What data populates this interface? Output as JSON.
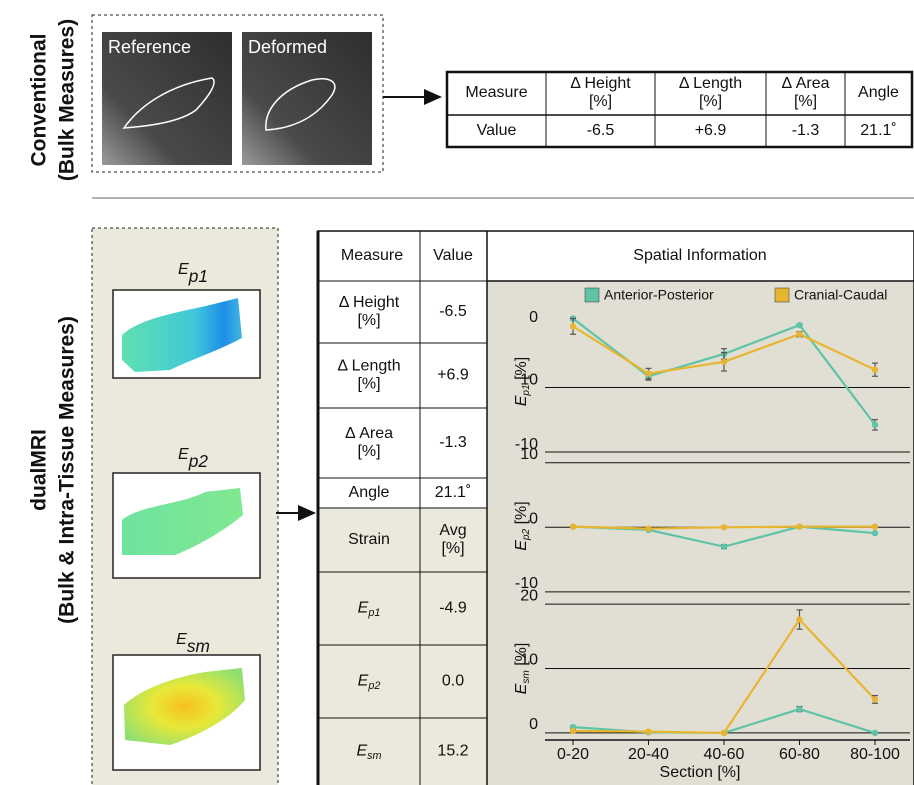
{
  "labels": {
    "conventional": [
      "Conventional",
      "(Bulk Measures)"
    ],
    "dualmri": [
      "dualMRI",
      "(Bulk & Intra-Tissue Measures)"
    ]
  },
  "images": {
    "reference": "Reference",
    "deformed": "Deformed"
  },
  "top_table": {
    "header": [
      [
        "Measure"
      ],
      [
        "Δ Height",
        "[%]"
      ],
      [
        "Δ Length",
        "[%]"
      ],
      [
        "Δ Area",
        "[%]"
      ],
      [
        "Angle"
      ]
    ],
    "row": [
      "Value",
      "-6.5",
      "+6.9",
      "-1.3",
      "21.1˚"
    ]
  },
  "maps": [
    {
      "symbol": "E",
      "sub": "p1"
    },
    {
      "symbol": "E",
      "sub": "p2"
    },
    {
      "symbol": "E",
      "sub": "sm"
    }
  ],
  "bottom_table": {
    "header": [
      "Measure",
      "Value"
    ],
    "rows": [
      [
        [
          "Δ Height",
          "[%]"
        ],
        "-6.5"
      ],
      [
        [
          "Δ Length",
          "[%]"
        ],
        "+6.9"
      ],
      [
        [
          "Δ Area",
          "[%]"
        ],
        "-1.3"
      ],
      [
        [
          "Angle"
        ],
        "21.1˚"
      ]
    ],
    "strain_header": [
      "Strain",
      [
        "Avg",
        "[%]"
      ]
    ],
    "strain_rows": [
      [
        {
          "symbol": "E",
          "sub": "p1"
        },
        "-4.9"
      ],
      [
        {
          "symbol": "E",
          "sub": "p2"
        },
        "0.0"
      ],
      [
        {
          "symbol": "E",
          "sub": "sm"
        },
        "15.2"
      ]
    ]
  },
  "spatial": {
    "title": "Spatial Information",
    "x_label": "Section [%]"
  },
  "chart_data": [
    {
      "type": "line",
      "y_label": {
        "symbol": "E",
        "sub": "p1",
        "unit": "[%]"
      },
      "ylim": [
        -10.4,
        0.8
      ],
      "ytick_labels": [
        "0",
        "10",
        "-10"
      ],
      "series": [
        {
          "name": "Anterior-Posterior",
          "color": "#5fc4a6",
          "values": [
            0,
            -4.4,
            -2.7,
            -0.5,
            -8.1
          ],
          "errors": [
            0.1,
            0.3,
            0.4,
            0.1,
            0.4
          ]
        },
        {
          "name": "Cranial-Caudal",
          "color": "#e8b530",
          "values": [
            -0.6,
            -4.2,
            -3.3,
            -1.2,
            -3.9
          ],
          "errors": [
            0.6,
            0.4,
            0.7,
            0.2,
            0.5
          ]
        }
      ]
    },
    {
      "type": "line",
      "y_label": {
        "symbol": "E",
        "sub": "p2",
        "unit": "[%]"
      },
      "ylim": [
        -10.8,
        11.2
      ],
      "yticks": [
        10,
        0,
        -10
      ],
      "series": [
        {
          "color": "#5fc4a6",
          "values": [
            0.1,
            -0.4,
            -3.0,
            0.1,
            -0.9
          ],
          "errors": [
            0.1,
            0.1,
            0.3,
            0.1,
            0.1
          ]
        },
        {
          "color": "#e8b530",
          "values": [
            0.1,
            -0.2,
            0,
            0.1,
            0.1
          ],
          "errors": [
            0.1,
            0.1,
            0.1,
            0.1,
            0.1
          ]
        }
      ]
    },
    {
      "type": "line",
      "y_label": {
        "symbol": "E",
        "sub": "sm",
        "unit": "[%]"
      },
      "ylim": [
        -1.1,
        21.1
      ],
      "yticks": [
        20,
        10,
        0
      ],
      "categories": [
        "0-20",
        "20-40",
        "40-60",
        "60-80",
        "80-100"
      ],
      "series": [
        {
          "color": "#5fc4a6",
          "values": [
            0.9,
            0.1,
            0,
            3.7,
            0
          ],
          "errors": [
            0.2,
            0.1,
            0.1,
            0.4,
            0.1
          ]
        },
        {
          "color": "#e8b530",
          "values": [
            0.3,
            0.2,
            0,
            17.6,
            5.2
          ],
          "errors": [
            0.2,
            0.1,
            0.1,
            1.5,
            0.6
          ]
        }
      ]
    }
  ]
}
